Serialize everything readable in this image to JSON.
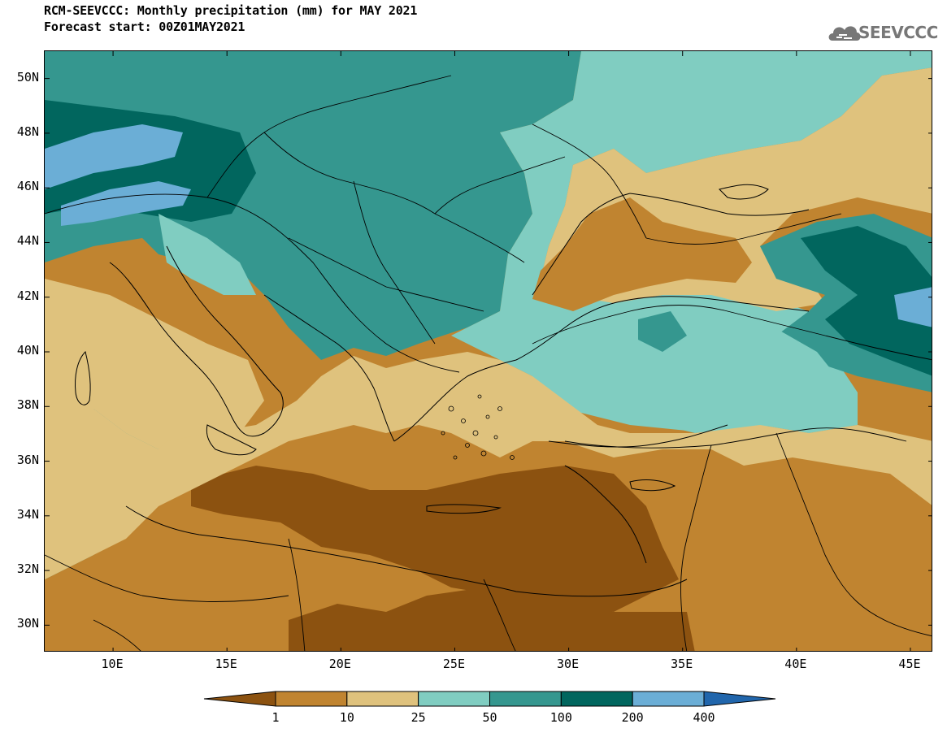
{
  "header": {
    "title": "RCM-SEEVCCC: Monthly precipitation (mm) for MAY 2021",
    "subtitle": "Forecast start: 00Z01MAY2021",
    "logo_text": "SEEVCCC"
  },
  "map": {
    "lon_range": [
      7,
      46
    ],
    "lat_range": [
      29,
      51
    ],
    "lat_ticks": [
      {
        "value": 50,
        "label": "50N"
      },
      {
        "value": 48,
        "label": "48N"
      },
      {
        "value": 46,
        "label": "46N"
      },
      {
        "value": 44,
        "label": "44N"
      },
      {
        "value": 42,
        "label": "42N"
      },
      {
        "value": 40,
        "label": "40N"
      },
      {
        "value": 38,
        "label": "38N"
      },
      {
        "value": 36,
        "label": "36N"
      },
      {
        "value": 34,
        "label": "34N"
      },
      {
        "value": 32,
        "label": "32N"
      },
      {
        "value": 30,
        "label": "30N"
      }
    ],
    "lon_ticks": [
      {
        "value": 10,
        "label": "10E"
      },
      {
        "value": 15,
        "label": "15E"
      },
      {
        "value": 20,
        "label": "20E"
      },
      {
        "value": 25,
        "label": "25E"
      },
      {
        "value": 30,
        "label": "30E"
      },
      {
        "value": 35,
        "label": "35E"
      },
      {
        "value": 40,
        "label": "40E"
      },
      {
        "value": 45,
        "label": "45E"
      }
    ]
  },
  "legend": {
    "levels": [
      {
        "value": "1",
        "color": "#8c5210"
      },
      {
        "value": "10",
        "color": "#c08430"
      },
      {
        "value": "25",
        "color": "#dfc27d"
      },
      {
        "value": "50",
        "color": "#80cdc1"
      },
      {
        "value": "100",
        "color": "#35978f"
      },
      {
        "value": "200",
        "color": "#01665e"
      },
      {
        "value": "400",
        "color": "#6baed6"
      }
    ],
    "below_color": "#8c5210",
    "above_color": "#2166ac",
    "colors": [
      "#c08430",
      "#dfc27d",
      "#80cdc1",
      "#35978f",
      "#01665e",
      "#6baed6"
    ]
  }
}
